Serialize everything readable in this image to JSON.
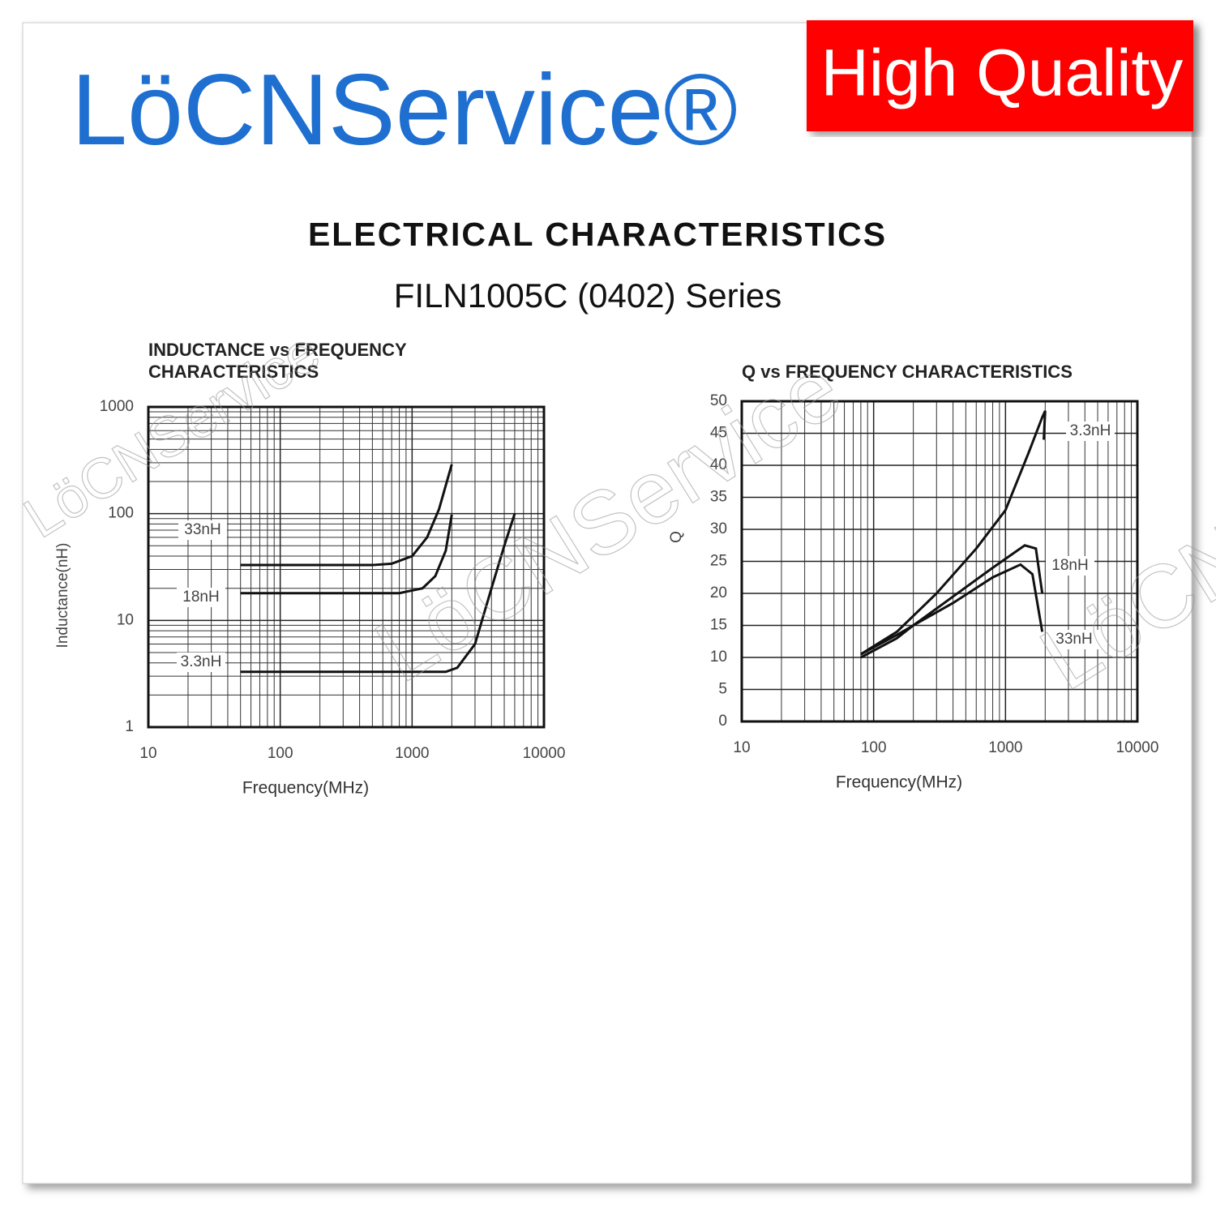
{
  "brand": "LöCNService®",
  "badge": "High Quality",
  "heading": "ELECTRICAL CHARACTERISTICS",
  "subheading": "FILN1005C (0402) Series",
  "watermark": "LöCNService",
  "chart_data": [
    {
      "type": "line",
      "title": [
        "INDUCTANCE vs FREQUENCY",
        "CHARACTERISTICS"
      ],
      "x_label": "Frequency(MHz)",
      "y_label": "Inductance(nH)",
      "xscale": "log",
      "yscale": "log",
      "xlim": [
        10,
        10000
      ],
      "ylim": [
        1,
        1000
      ],
      "xticks": [
        10,
        100,
        1000,
        10000
      ],
      "yticks": [
        1,
        10,
        100,
        1000
      ],
      "grid": true,
      "minor_grid": true,
      "series": [
        {
          "name": "33nH",
          "color": "#111111",
          "x": [
            50,
            500,
            700,
            1000,
            1300,
            1600,
            2000
          ],
          "values": [
            33,
            33,
            34,
            40,
            60,
            110,
            290
          ]
        },
        {
          "name": "18nH",
          "color": "#111111",
          "x": [
            50,
            800,
            1200,
            1500,
            1800,
            2000
          ],
          "values": [
            18,
            18,
            20,
            26,
            45,
            98
          ]
        },
        {
          "name": "3.3nH",
          "color": "#111111",
          "x": [
            50,
            1800,
            2200,
            3000,
            4000,
            5000,
            6000
          ],
          "values": [
            3.3,
            3.3,
            3.6,
            6,
            20,
            50,
            100
          ]
        }
      ]
    },
    {
      "type": "line",
      "title": [
        "Q vs FREQUENCY CHARACTERISTICS"
      ],
      "x_label": "Frequency(MHz)",
      "y_label": "Q",
      "xscale": "log",
      "yscale": "linear",
      "xlim": [
        10,
        10000
      ],
      "ylim": [
        0,
        50
      ],
      "xticks": [
        10,
        100,
        1000,
        10000
      ],
      "yticks": [
        0,
        5,
        10,
        15,
        20,
        25,
        30,
        35,
        40,
        45,
        50
      ],
      "grid": true,
      "minor_grid": true,
      "series": [
        {
          "name": "3.3nH",
          "color": "#111111",
          "x": [
            80,
            150,
            300,
            600,
            1000,
            1500,
            1900,
            2000,
            1950
          ],
          "values": [
            10.5,
            14,
            20,
            27,
            33,
            42,
            47.5,
            48.5,
            44
          ]
        },
        {
          "name": "18nH",
          "color": "#111111",
          "x": [
            80,
            150,
            200,
            400,
            800,
            1400,
            1700,
            1900
          ],
          "values": [
            10,
            13,
            15,
            19.5,
            24,
            27.5,
            27,
            20
          ]
        },
        {
          "name": "33nH",
          "color": "#111111",
          "x": [
            80,
            150,
            200,
            400,
            800,
            1300,
            1600,
            1900
          ],
          "values": [
            10.5,
            13.5,
            15,
            18.5,
            22.5,
            24.5,
            23,
            14
          ]
        }
      ]
    }
  ]
}
